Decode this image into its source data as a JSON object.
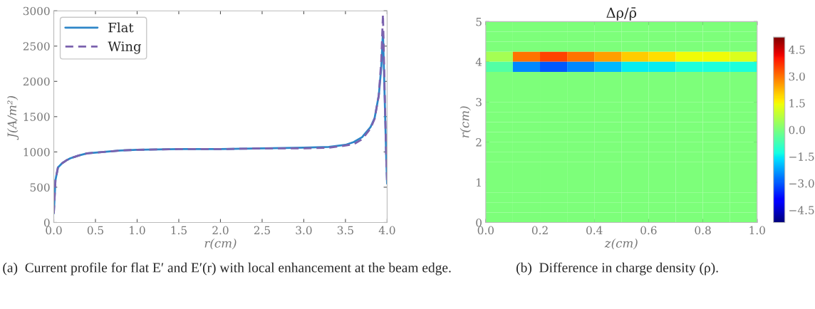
{
  "chart_data": [
    {
      "type": "line",
      "xlabel": "r(cm)",
      "ylabel": "J(A/m²)",
      "x": [
        0,
        0.02,
        0.05,
        0.1,
        0.15,
        0.2,
        0.25,
        0.3,
        0.4,
        0.5,
        0.6,
        0.8,
        1.0,
        1.5,
        2.0,
        2.5,
        3.0,
        3.3,
        3.5,
        3.6,
        3.7,
        3.8,
        3.85,
        3.9,
        3.93,
        3.95,
        3.97,
        3.99,
        4.0
      ],
      "series": [
        {
          "name": "Flat",
          "color": "#2e86c8",
          "line_style": "solid",
          "values": [
            130,
            600,
            780,
            840,
            880,
            910,
            930,
            950,
            980,
            990,
            1000,
            1020,
            1030,
            1040,
            1040,
            1050,
            1060,
            1070,
            1100,
            1140,
            1210,
            1350,
            1480,
            1800,
            2200,
            2700,
            1800,
            900,
            550
          ]
        },
        {
          "name": "Wing",
          "color": "#7b62ae",
          "line_style": "dashed",
          "values": [
            130,
            600,
            780,
            840,
            880,
            910,
            930,
            950,
            980,
            990,
            1000,
            1020,
            1030,
            1040,
            1040,
            1050,
            1050,
            1060,
            1090,
            1110,
            1180,
            1330,
            1470,
            1800,
            2300,
            2950,
            1900,
            900,
            550
          ]
        }
      ],
      "xlim": [
        0,
        4
      ],
      "xticks": [
        {
          "value": 0,
          "label": "0.0"
        },
        0.5,
        {
          "value": 1,
          "label": "1.0"
        },
        1.5,
        {
          "value": 2,
          "label": "2.0"
        },
        2.5,
        {
          "value": 3,
          "label": "3.0"
        },
        3.5,
        {
          "value": 4,
          "label": "4.0"
        }
      ],
      "ylim": [
        0,
        3000
      ],
      "yticks": [
        0,
        500,
        1000,
        1500,
        2000,
        2500,
        3000
      ],
      "legend": "top left",
      "grid": false,
      "annotations": [
        "(a)  Current profile for flat E′ and E′(r) with local enhancement at the beam edge."
      ]
    },
    {
      "type": "heatmap",
      "title": "Δρ/ρ̄",
      "xlabel": "z(cm)",
      "ylabel": "r(cm)",
      "x": [
        0.05,
        0.15,
        0.25,
        0.35,
        0.45,
        0.55,
        0.65,
        0.75,
        0.85,
        0.95
      ],
      "cells": [
        [
          0,
          0,
          0,
          0,
          0,
          0,
          0,
          0,
          0,
          0
        ],
        [
          0,
          0,
          0,
          0,
          0,
          0,
          0,
          0,
          0,
          0
        ],
        [
          0,
          0,
          0,
          0,
          0,
          0,
          0,
          0,
          0,
          0
        ],
        [
          0.5,
          3.0,
          3.5,
          3.0,
          2.5,
          2.0,
          1.8,
          1.5,
          1.5,
          1.2
        ],
        [
          -0.5,
          -2.5,
          -3.0,
          -2.5,
          -2.0,
          -1.5,
          -1.5,
          -1.2,
          -1.2,
          -1.2
        ],
        [
          0,
          0,
          0,
          0,
          0,
          0,
          0,
          0,
          0,
          0
        ],
        [
          0,
          0,
          0,
          0,
          0,
          0,
          0,
          0,
          0,
          0
        ],
        [
          0,
          0,
          0,
          0,
          0,
          0,
          0,
          0,
          0,
          0
        ],
        [
          0,
          0,
          0,
          0,
          0,
          0,
          0,
          0,
          0,
          0
        ],
        [
          0,
          0,
          0,
          0,
          0,
          0,
          0,
          0,
          0,
          0
        ],
        [
          0,
          0,
          0,
          0,
          0,
          0,
          0,
          0,
          0,
          0
        ],
        [
          0,
          0,
          0,
          0,
          0,
          0,
          0,
          0,
          0,
          0
        ],
        [
          0,
          0,
          0,
          0,
          0,
          0,
          0,
          0,
          0,
          0
        ],
        [
          0,
          0,
          0,
          0,
          0,
          0,
          0,
          0,
          0,
          0
        ],
        [
          0,
          0,
          0,
          0,
          0,
          0,
          0,
          0,
          0,
          0
        ],
        [
          0,
          0,
          0,
          0,
          0,
          0,
          0,
          0,
          0,
          0
        ],
        [
          0,
          0,
          0,
          0,
          0,
          0,
          0,
          0,
          0,
          0
        ],
        [
          0,
          0,
          0,
          0,
          0,
          0,
          0,
          0,
          0,
          0
        ],
        [
          0,
          0,
          0,
          0,
          0,
          0,
          0,
          0,
          0,
          0
        ],
        [
          0,
          0,
          0,
          0,
          0,
          0,
          0,
          0,
          0,
          0
        ]
      ],
      "xlim": [
        0,
        1
      ],
      "xticks": [
        {
          "value": 0,
          "label": "0.0"
        },
        0.2,
        0.4,
        0.6,
        0.8,
        {
          "value": 1,
          "label": "1.0"
        }
      ],
      "ylim": [
        0,
        5
      ],
      "yticks": [
        0,
        1,
        2,
        3,
        4,
        5
      ],
      "clim": [
        -5.2,
        5.2
      ],
      "cticks": [
        {
          "value": -4.5,
          "label": "−4.5"
        },
        {
          "value": -3.0,
          "label": "−3.0"
        },
        {
          "value": -1.5,
          "label": "−1.5"
        },
        {
          "value": 0,
          "label": "0.0"
        },
        1.5,
        {
          "value": 3,
          "label": "3.0"
        },
        4.5
      ],
      "annotations": [
        "(b)  Difference in charge density (ρ)."
      ]
    }
  ]
}
